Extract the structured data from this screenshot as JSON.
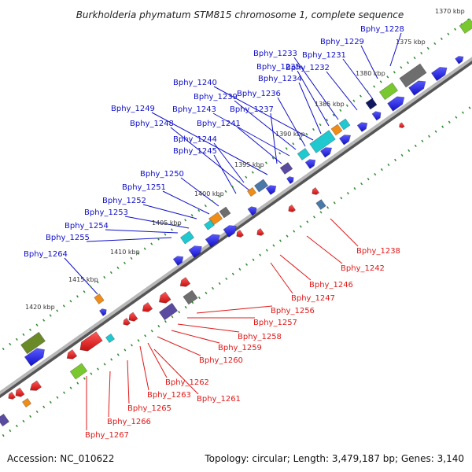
{
  "title": "Burkholderia phymatum STM815 chromosome 1, complete sequence",
  "footer": {
    "accession": "Accession: NC_010622",
    "summary": "Topology: circular; Length: 3,479,187 bp; Genes: 3,140"
  },
  "colors": {
    "top_gene": "#1a1ae6",
    "bottom_gene": "#e61a1a",
    "top_label": "#1010c8",
    "bottom_label": "#e01818",
    "backbone": "#7a7a7a",
    "dots": "#2c8a2c",
    "cyan": "#20c8d0",
    "orange": "#f08c18",
    "green": "#7ac830",
    "olive": "#6a8a28",
    "gray": "#6e6e6e",
    "purple": "#5a4aa0",
    "navy": "#101860",
    "steel": "#4a78a8"
  },
  "kbp_ticks": [
    "1370 kbp",
    "1375 kbp",
    "1380 kbp",
    "1385 kbp",
    "1390 kbp",
    "1395 kbp",
    "1400 kbp",
    "1405 kbp",
    "1410 kbp",
    "1415 kbp",
    "1420 kbp"
  ],
  "top_genes": [
    "Bphy_1228",
    "Bphy_1229",
    "Bphy_1233",
    "Bphy_1231",
    "Bphy_1235",
    "Bphy_1232",
    "Bphy_1240",
    "Bphy_1234",
    "Bphy_1239",
    "Bphy_1236",
    "Bphy_1249",
    "Bphy_1243",
    "Bphy_1237",
    "Bphy_1248",
    "Bphy_1241",
    "Bphy_1244",
    "Bphy_1245",
    "Bphy_1250",
    "Bphy_1251",
    "Bphy_1252",
    "Bphy_1253",
    "Bphy_1254",
    "Bphy_1255",
    "Bphy_1264"
  ],
  "bottom_genes": [
    "Bphy_1238",
    "Bphy_1242",
    "Bphy_1246",
    "Bphy_1247",
    "Bphy_1256",
    "Bphy_1257",
    "Bphy_1258",
    "Bphy_1259",
    "Bphy_1260",
    "Bphy_1262",
    "Bphy_1263",
    "Bphy_1261",
    "Bphy_1265",
    "Bphy_1266",
    "Bphy_1267"
  ]
}
